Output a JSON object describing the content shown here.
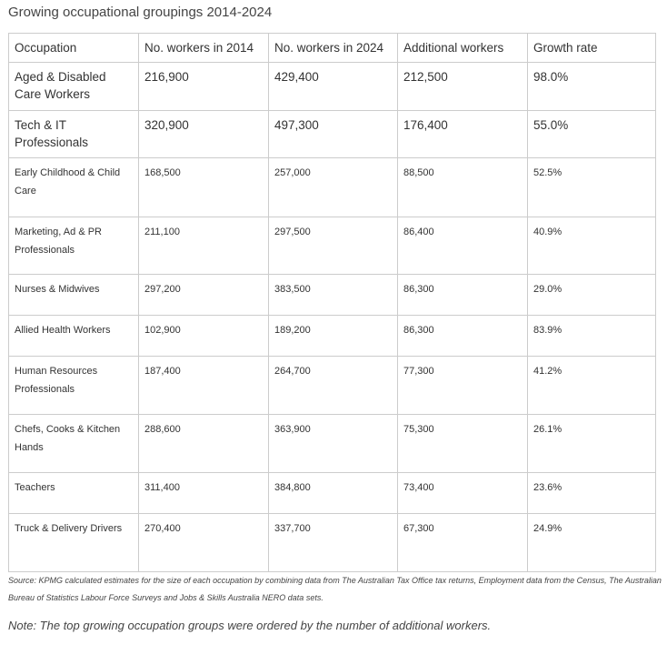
{
  "title": "Growing occupational groupings 2014-2024",
  "table": {
    "headers": [
      "Occupation",
      "No. workers in 2014",
      "No. workers in 2024",
      "Additional workers",
      "Growth rate"
    ],
    "rows": [
      [
        "Aged & Disabled Care Workers",
        "216,900",
        "429,400",
        "212,500",
        "98.0%"
      ],
      [
        "Tech & IT Professionals",
        "320,900",
        "497,300",
        "176,400",
        "55.0%"
      ],
      [
        "Early Childhood & Child Care",
        "168,500",
        "257,000",
        "88,500",
        "52.5%"
      ],
      [
        "Marketing, Ad & PR Professionals",
        "211,100",
        "297,500",
        "86,400",
        "40.9%"
      ],
      [
        "Nurses & Midwives",
        "297,200",
        "383,500",
        "86,300",
        "29.0%"
      ],
      [
        "Allied Health Workers",
        "102,900",
        "189,200",
        "86,300",
        "83.9%"
      ],
      [
        "Human Resources Professionals",
        "187,400",
        "264,700",
        "77,300",
        "41.2%"
      ],
      [
        "Chefs, Cooks & Kitchen Hands",
        "288,600",
        "363,900",
        "75,300",
        "26.1%"
      ],
      [
        "Teachers",
        "311,400",
        "384,800",
        "73,400",
        "23.6%"
      ],
      [
        "Truck & Delivery Drivers",
        "270,400",
        "337,700",
        "67,300",
        "24.9%"
      ]
    ]
  },
  "source": "Source: KPMG calculated estimates for the size of each occupation by combining data from The Australian Tax Office tax returns, Employment data from the Census, The Australian Bureau of Statistics Labour Force Surveys and Jobs & Skills Australia NERO data sets.",
  "note": "Note: The top growing occupation groups were ordered by the number of additional workers."
}
